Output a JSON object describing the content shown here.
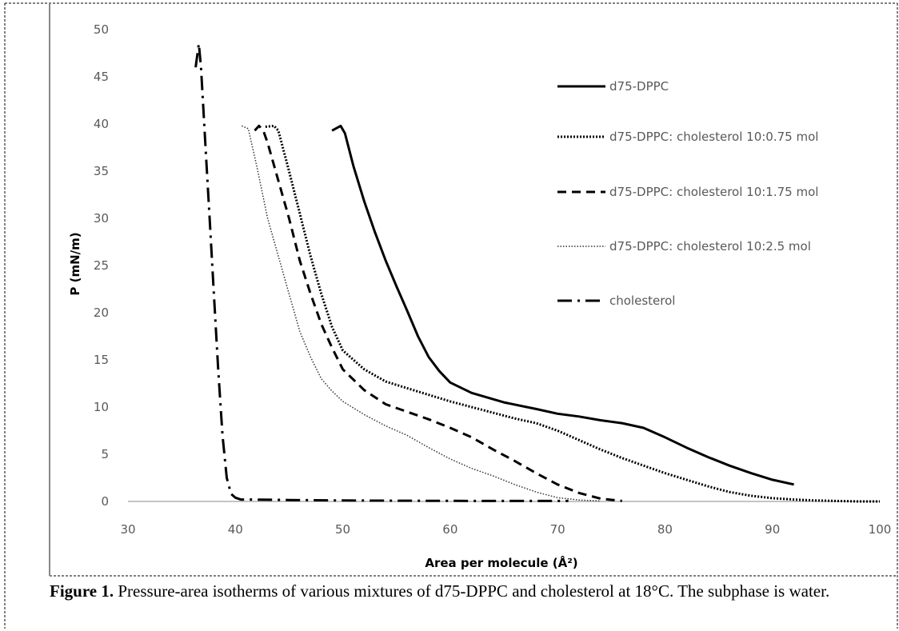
{
  "chart_data": {
    "type": "line",
    "xlabel": "Area per molecule (Å²)",
    "ylabel": "P (mN/m)",
    "xlim": [
      30,
      100
    ],
    "ylim": [
      0,
      50
    ],
    "xticks": [
      "30",
      "40",
      "50",
      "60",
      "70",
      "80",
      "90",
      "100"
    ],
    "yticks": [
      "0",
      "5",
      "10",
      "15",
      "20",
      "25",
      "30",
      "35",
      "40",
      "45",
      "50"
    ],
    "grid": false,
    "legend_position": "right",
    "series": [
      {
        "name": "d75-DPPC",
        "style": "solid",
        "x": [
          49.0,
          49.8,
          50.2,
          51,
          52,
          53,
          54,
          55,
          56,
          57,
          58,
          59,
          60,
          62,
          65,
          68,
          70,
          72,
          74,
          76,
          78,
          80,
          82,
          84,
          86,
          88,
          90,
          92
        ],
        "y": [
          39.3,
          39.8,
          39.0,
          35.5,
          31.8,
          28.5,
          25.5,
          22.8,
          20.2,
          17.5,
          15.3,
          13.8,
          12.6,
          11.5,
          10.5,
          9.8,
          9.3,
          9.0,
          8.6,
          8.3,
          7.8,
          6.8,
          5.7,
          4.7,
          3.8,
          3.0,
          2.3,
          1.8
        ]
      },
      {
        "name": "d75-DPPC: cholesterol 10:0.75 mol",
        "style": "dotted-bold",
        "x": [
          42.8,
          43.6,
          44,
          45,
          46,
          47,
          48,
          49,
          50,
          52,
          54,
          56,
          58,
          60,
          62,
          64,
          66,
          68,
          70,
          72,
          74,
          76,
          78,
          80,
          82,
          84,
          86,
          88,
          90,
          92,
          94,
          96,
          98,
          100
        ],
        "y": [
          39.7,
          39.8,
          39.3,
          35.0,
          30.5,
          26.0,
          22.0,
          18.5,
          16.0,
          14.0,
          12.7,
          12.0,
          11.3,
          10.6,
          10.0,
          9.4,
          8.8,
          8.3,
          7.5,
          6.5,
          5.5,
          4.6,
          3.8,
          3.0,
          2.3,
          1.6,
          1.0,
          0.6,
          0.35,
          0.2,
          0.1,
          0.05,
          0.0,
          0.0
        ]
      },
      {
        "name": "d75-DPPC: cholesterol 10:1.75 mol",
        "style": "dashed",
        "x": [
          41.8,
          42.2,
          42.6,
          43,
          44,
          45,
          46,
          47,
          48,
          49,
          50,
          52,
          54,
          56,
          58,
          60,
          62,
          64,
          66,
          68,
          70,
          72,
          74,
          76
        ],
        "y": [
          39.3,
          39.8,
          39.3,
          38.0,
          34.0,
          30.0,
          25.5,
          22.0,
          18.8,
          16.3,
          14.0,
          11.8,
          10.3,
          9.5,
          8.7,
          7.8,
          6.8,
          5.5,
          4.3,
          3.0,
          1.8,
          0.9,
          0.3,
          0.05
        ]
      },
      {
        "name": "d75-DPPC: cholesterol 10:2.5 mol",
        "style": "dotted-fine",
        "x": [
          40.6,
          41.2,
          42,
          43,
          44,
          45,
          46,
          47,
          48,
          49,
          50,
          52,
          54,
          56,
          58,
          60,
          62,
          64,
          66,
          68,
          70,
          72,
          74
        ],
        "y": [
          39.8,
          39.5,
          35.5,
          30.0,
          26.0,
          22.0,
          18.0,
          15.3,
          13.0,
          11.7,
          10.6,
          9.2,
          8.0,
          7.0,
          5.7,
          4.5,
          3.5,
          2.7,
          1.8,
          1.0,
          0.4,
          0.15,
          0.05
        ]
      },
      {
        "name": "cholesterol",
        "style": "dash-dot",
        "x": [
          36.3,
          36.6,
          36.8,
          37,
          37.3,
          37.6,
          38,
          38.4,
          38.8,
          39.2,
          39.6,
          40.0,
          40.5,
          41.5,
          45,
          50,
          55,
          60,
          65,
          70,
          71
        ],
        "y": [
          46.0,
          48.5,
          46.0,
          42.0,
          36.0,
          30.0,
          22.0,
          14.0,
          7.0,
          2.5,
          0.8,
          0.4,
          0.2,
          0.2,
          0.15,
          0.1,
          0.08,
          0.06,
          0.05,
          0.05,
          0.05
        ]
      }
    ]
  },
  "caption": {
    "label": "Figure 1.",
    "text": " Pressure-area isotherms of various mixtures of d75-DPPC and cholesterol at 18°C. The subphase is water."
  }
}
